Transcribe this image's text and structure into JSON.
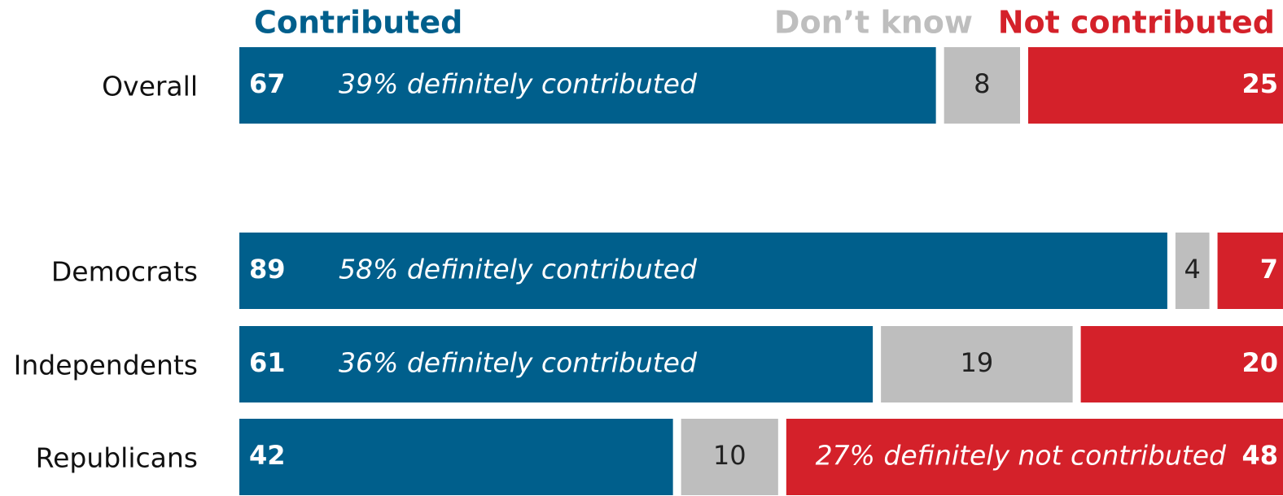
{
  "chart_data": {
    "type": "stacked-bar",
    "categories": [
      "Overall",
      "Democrats",
      "Independents",
      "Republicans"
    ],
    "series": [
      {
        "name": "Contributed",
        "color": "#005f8c",
        "values": [
          67,
          89,
          61,
          42
        ],
        "annotations": [
          "39% definitely contributed",
          "58% definitely contributed",
          "36% definitely contributed",
          null
        ]
      },
      {
        "name": "Don’t know",
        "color": "#bebebe",
        "values": [
          8,
          4,
          19,
          10
        ]
      },
      {
        "name": "Not contributed",
        "color": "#d4212a",
        "values": [
          25,
          7,
          20,
          48
        ],
        "annotations": [
          null,
          null,
          null,
          "27% definitely not contributed"
        ]
      }
    ]
  }
}
